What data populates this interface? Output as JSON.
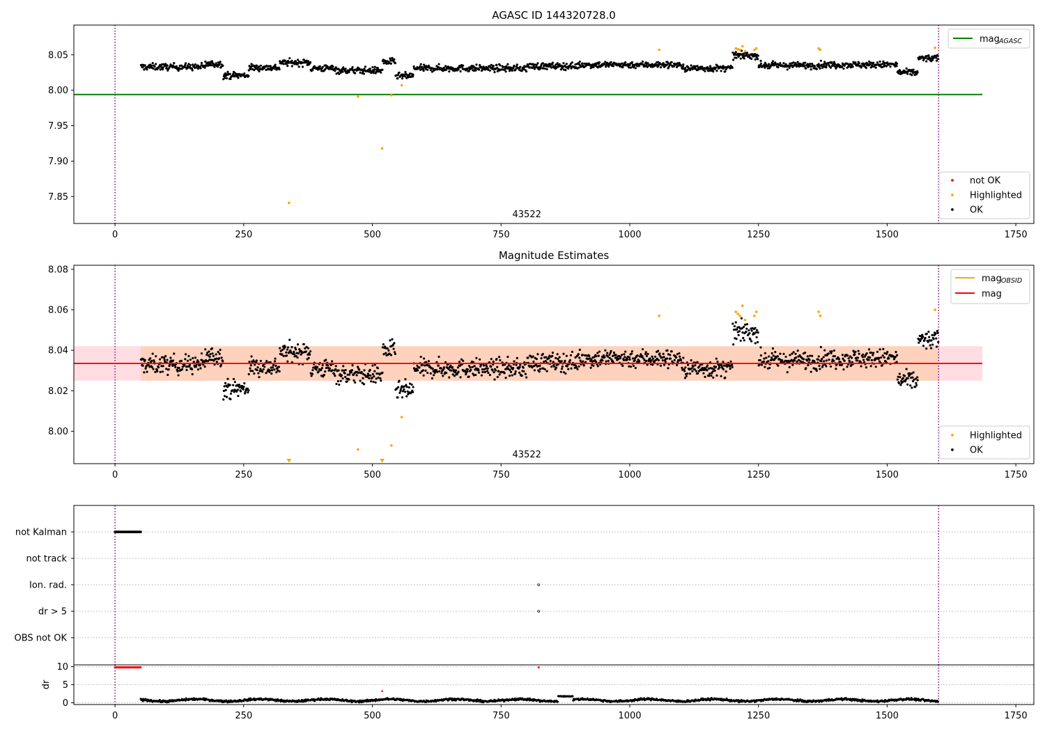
{
  "colors": {
    "ok": "#000000",
    "highlighted": "#ffa500",
    "not_ok": "#ff0000",
    "mag_agasc": "#008000",
    "mag_obsid": "#ffa500",
    "mag": "#ff0000",
    "obs_line": "#800080",
    "band_outer": "#ffdde3",
    "band_inner": "#ffd2bd",
    "grid": "#b0b0b0"
  },
  "chart_data": [
    {
      "type": "scatter",
      "title": "AGASC ID 144320728.0",
      "xlim": [
        -80,
        1785
      ],
      "ylim": [
        7.812,
        8.092
      ],
      "xticks": [
        0,
        250,
        500,
        750,
        1000,
        1250,
        1500,
        1750
      ],
      "xtick_labels": [
        "0",
        "250",
        "500",
        "750",
        "1000",
        "1250",
        "1500",
        "1750"
      ],
      "yticks": [
        7.85,
        7.9,
        7.95,
        8.0,
        8.05
      ],
      "ytick_labels": [
        "7.85",
        "7.90",
        "7.95",
        "8.00",
        "8.05"
      ],
      "obs_boundaries": [
        0,
        1600
      ],
      "obsid_label": "43522",
      "obsid_label_x": 800,
      "mag_agasc": 7.994,
      "mag_agasc_x": [
        -80,
        1685
      ],
      "ok_segments": [
        {
          "x_start": 50,
          "x_end": 175,
          "base": 8.033
        },
        {
          "x_start": 175,
          "x_end": 210,
          "base": 8.037
        },
        {
          "x_start": 210,
          "x_end": 260,
          "base": 8.021
        },
        {
          "x_start": 260,
          "x_end": 320,
          "base": 8.032
        },
        {
          "x_start": 320,
          "x_end": 380,
          "base": 8.039
        },
        {
          "x_start": 380,
          "x_end": 430,
          "base": 8.031
        },
        {
          "x_start": 430,
          "x_end": 520,
          "base": 8.028
        },
        {
          "x_start": 520,
          "x_end": 545,
          "base": 8.04
        },
        {
          "x_start": 545,
          "x_end": 580,
          "base": 8.02
        },
        {
          "x_start": 580,
          "x_end": 800,
          "base": 8.031
        },
        {
          "x_start": 800,
          "x_end": 900,
          "base": 8.034
        },
        {
          "x_start": 900,
          "x_end": 1100,
          "base": 8.036
        },
        {
          "x_start": 1100,
          "x_end": 1200,
          "base": 8.031
        },
        {
          "x_start": 1200,
          "x_end": 1250,
          "base": 8.049
        },
        {
          "x_start": 1250,
          "x_end": 1370,
          "base": 8.035
        },
        {
          "x_start": 1370,
          "x_end": 1520,
          "base": 8.036
        },
        {
          "x_start": 1520,
          "x_end": 1560,
          "base": 8.025
        },
        {
          "x_start": 1560,
          "x_end": 1600,
          "base": 8.045
        }
      ],
      "highlighted_x": [
        338,
        472,
        519,
        537,
        557,
        1057,
        1206,
        1210,
        1214,
        1219,
        1224,
        1242,
        1246,
        1367,
        1370,
        1593
      ],
      "highlighted_y": [
        7.841,
        7.991,
        7.918,
        7.993,
        8.007,
        8.057,
        8.059,
        8.058,
        8.057,
        8.062,
        8.055,
        8.057,
        8.059,
        8.059,
        8.057,
        8.06
      ],
      "legend_lines": [
        {
          "label": "mag",
          "sub": "AGASC"
        }
      ],
      "legend_points": [
        {
          "label": "not OK",
          "color_key": "not_ok"
        },
        {
          "label": "Highlighted",
          "color_key": "highlighted"
        },
        {
          "label": "OK",
          "color_key": "ok"
        }
      ]
    },
    {
      "type": "scatter",
      "title": "Magnitude Estimates",
      "xlim": [
        -80,
        1785
      ],
      "ylim": [
        7.984,
        8.082
      ],
      "xticks": [
        0,
        250,
        500,
        750,
        1000,
        1250,
        1500,
        1750
      ],
      "xtick_labels": [
        "0",
        "250",
        "500",
        "750",
        "1000",
        "1250",
        "1500",
        "1750"
      ],
      "yticks": [
        8.0,
        8.02,
        8.04,
        8.06,
        8.08
      ],
      "ytick_labels": [
        "8.00",
        "8.02",
        "8.04",
        "8.06",
        "8.08"
      ],
      "obs_boundaries": [
        0,
        1600
      ],
      "obsid_label": "43522",
      "mag": 8.0335,
      "mag_obsid": 8.0335,
      "band_outer": [
        8.025,
        8.042
      ],
      "band_outer_x": [
        -80,
        1685
      ],
      "band_inner_x": [
        50,
        1600
      ],
      "highlighted_x": [
        472,
        537,
        557,
        1057,
        1206,
        1210,
        1214,
        1219,
        1224,
        1242,
        1246,
        1367,
        1370,
        1593
      ],
      "highlighted_y": [
        7.991,
        7.993,
        8.007,
        8.057,
        8.059,
        8.058,
        8.057,
        8.062,
        8.055,
        8.057,
        8.059,
        8.059,
        8.057,
        8.06
      ],
      "clipped_x": [
        338,
        519
      ],
      "legend_lines": [
        {
          "label": "mag",
          "sub": "OBSID",
          "color_key": "mag_obsid"
        },
        {
          "label": "mag",
          "sub": "",
          "color_key": "mag"
        }
      ],
      "legend_points": [
        {
          "label": "Highlighted",
          "color_key": "highlighted"
        },
        {
          "label": "OK",
          "color_key": "ok"
        }
      ]
    },
    {
      "type": "scatter",
      "title": "",
      "flags": [
        "not Kalman",
        "not track",
        "Ion. rad.",
        "dr > 5",
        "OBS not OK"
      ],
      "flag_points": [
        {
          "flag": "not Kalman",
          "x_start": 0,
          "x_end": 50
        },
        {
          "flag": "Ion. rad.",
          "x_start": 823,
          "x_end": 823
        },
        {
          "flag": "dr > 5",
          "x_start": 823,
          "x_end": 823
        }
      ]
    },
    {
      "type": "scatter",
      "ylabel": "dr",
      "xlim": [
        -80,
        1785
      ],
      "ylim": [
        -0.5,
        10.5
      ],
      "xticks": [
        0,
        250,
        500,
        750,
        1000,
        1250,
        1500,
        1750
      ],
      "xtick_labels": [
        "0",
        "250",
        "500",
        "750",
        "1000",
        "1250",
        "1500",
        "1750"
      ],
      "yticks": [
        0,
        5,
        10
      ],
      "ytick_labels": [
        "0",
        "5",
        "10"
      ],
      "not_ok_x": [
        0,
        50,
        823,
        519
      ],
      "not_ok_y": [
        9.8,
        9.8,
        9.8,
        3.2
      ],
      "dr_base": 0.7
    }
  ]
}
